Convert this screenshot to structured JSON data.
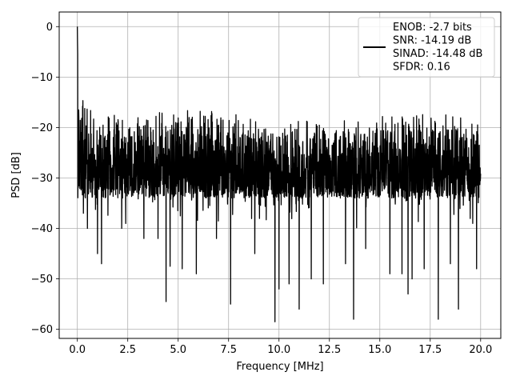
{
  "chart_data": {
    "type": "line",
    "xlabel": "Frequency [MHz]",
    "ylabel": "PSD [dB]",
    "xlim": [
      -0.9,
      21.0
    ],
    "ylim": [
      -61.8,
      2.9
    ],
    "xticks": [
      0.0,
      2.5,
      5.0,
      7.5,
      10.0,
      12.5,
      15.0,
      17.5,
      20.0
    ],
    "xtick_labels": [
      "0.0",
      "2.5",
      "5.0",
      "7.5",
      "10.0",
      "12.5",
      "15.0",
      "17.5",
      "20.0"
    ],
    "yticks": [
      0,
      -10,
      -20,
      -30,
      -40,
      -50,
      -60
    ],
    "ytick_labels": [
      "0",
      "−10",
      "−20",
      "−30",
      "−40",
      "−50",
      "−60"
    ],
    "grid": true,
    "legend_placement": "top-right",
    "legend_lines": [
      "ENOB: -2.7 bits",
      "SNR: -14.19 dB",
      "SINAD: -14.48 dB",
      "SFDR: 0.16"
    ],
    "series": [
      {
        "color": "#000000",
        "envelope_upper": [
          [
            0.0,
            0.0
          ],
          [
            0.1,
            -7
          ],
          [
            0.2,
            -12
          ],
          [
            0.3,
            -14
          ],
          [
            0.5,
            -15
          ],
          [
            1.0,
            -16
          ],
          [
            2.0,
            -16.5
          ],
          [
            4.0,
            -16.5
          ],
          [
            6.0,
            -16
          ],
          [
            8.0,
            -17
          ],
          [
            10.0,
            -17.5
          ],
          [
            12.0,
            -18
          ],
          [
            14.0,
            -18
          ],
          [
            16.0,
            -17
          ],
          [
            17.5,
            -16
          ],
          [
            19.0,
            -17
          ],
          [
            20.0,
            -19
          ]
        ],
        "typical_upper": -20,
        "typical_lower": -34,
        "deep_dips": [
          [
            0.3,
            -37
          ],
          [
            0.5,
            -40
          ],
          [
            1.0,
            -45
          ],
          [
            1.2,
            -47
          ],
          [
            2.2,
            -40
          ],
          [
            3.3,
            -42
          ],
          [
            4.0,
            -42
          ],
          [
            4.4,
            -54.5
          ],
          [
            4.6,
            -47.5
          ],
          [
            5.2,
            -48
          ],
          [
            5.9,
            -49
          ],
          [
            6.9,
            -42
          ],
          [
            7.6,
            -55
          ],
          [
            8.8,
            -45
          ],
          [
            9.8,
            -58.5
          ],
          [
            10.0,
            -52
          ],
          [
            10.5,
            -51
          ],
          [
            11.0,
            -56
          ],
          [
            11.6,
            -50
          ],
          [
            12.2,
            -51
          ],
          [
            13.3,
            -47
          ],
          [
            13.7,
            -58
          ],
          [
            14.3,
            -44
          ],
          [
            15.5,
            -49
          ],
          [
            16.1,
            -49
          ],
          [
            16.4,
            -53
          ],
          [
            16.6,
            -50
          ],
          [
            17.2,
            -48
          ],
          [
            17.9,
            -58
          ],
          [
            18.5,
            -47
          ],
          [
            18.9,
            -56
          ],
          [
            19.8,
            -48
          ]
        ]
      }
    ]
  }
}
